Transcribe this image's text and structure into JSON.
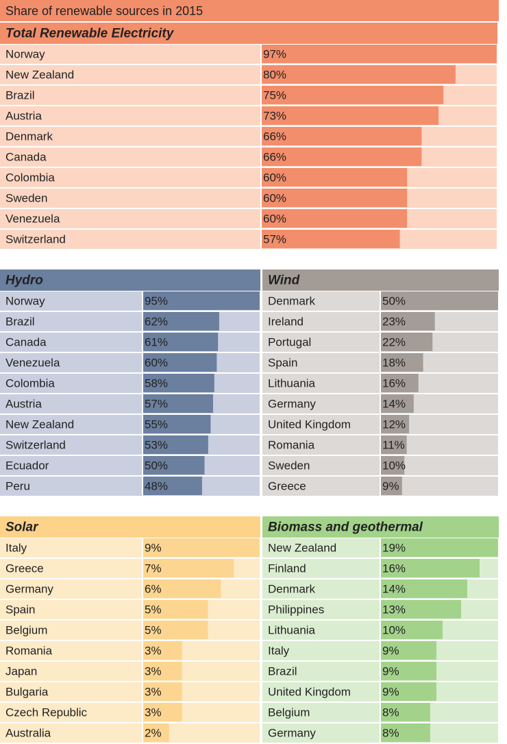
{
  "title": "Share of renewable sources in 2015",
  "chart_data": [
    {
      "type": "bar",
      "title": "Total Renewable Electricity",
      "color": "#f28e6c",
      "categories": [
        "Norway",
        "New Zealand",
        "Brazil",
        "Austria",
        "Denmark",
        "Canada",
        "Colombia",
        "Sweden",
        "Venezuela",
        "Switzerland"
      ],
      "values": [
        97,
        80,
        75,
        73,
        66,
        66,
        60,
        60,
        60,
        57
      ],
      "value_labels": [
        "97%",
        "80%",
        "75%",
        "73%",
        "66%",
        "66%",
        "60%",
        "60%",
        "60%",
        "57%"
      ]
    },
    {
      "type": "bar",
      "title": "Hydro",
      "color": "#6b7f9f",
      "categories": [
        "Norway",
        "Brazil",
        "Canada",
        "Venezuela",
        "Colombia",
        "Austria",
        "New Zealand",
        "Switzerland",
        "Ecuador",
        "Peru"
      ],
      "values": [
        95,
        62,
        61,
        60,
        58,
        57,
        55,
        53,
        50,
        48
      ],
      "value_labels": [
        "95%",
        "62%",
        "61%",
        "60%",
        "58%",
        "57%",
        "55%",
        "53%",
        "50%",
        "48%"
      ]
    },
    {
      "type": "bar",
      "title": "Wind",
      "color": "#a49d97",
      "categories": [
        "Denmark",
        "Ireland",
        "Portugal",
        "Spain",
        "Lithuania",
        "Germany",
        "United Kingdom",
        "Romania",
        "Sweden",
        "Greece"
      ],
      "values": [
        50,
        23,
        22,
        18,
        16,
        14,
        12,
        11,
        10,
        9
      ],
      "value_labels": [
        "50%",
        "23%",
        "22%",
        "18%",
        "16%",
        "14%",
        "12%",
        "11%",
        "10%",
        "9%"
      ]
    },
    {
      "type": "bar",
      "title": "Solar",
      "color": "#fcd590",
      "categories": [
        "Italy",
        "Greece",
        "Germany",
        "Spain",
        "Belgium",
        "Romania",
        "Japan",
        "Bulgaria",
        "Czech Republic",
        "Australia"
      ],
      "values": [
        9,
        7,
        6,
        5,
        5,
        3,
        3,
        3,
        3,
        2
      ],
      "value_labels": [
        "9%",
        "7%",
        "6%",
        "5%",
        "5%",
        "3%",
        "3%",
        "3%",
        "3%",
        "2%"
      ]
    },
    {
      "type": "bar",
      "title": "Biomass and geothermal",
      "color": "#a3d38b",
      "categories": [
        "New Zealand",
        "Finland",
        "Denmark",
        "Philippines",
        "Lithuania",
        "Italy",
        "Brazil",
        "United Kingdom",
        "Belgium",
        "Germany"
      ],
      "values": [
        19,
        16,
        14,
        13,
        10,
        9,
        9,
        9,
        8,
        8
      ],
      "value_labels": [
        "19%",
        "16%",
        "14%",
        "13%",
        "10%",
        "9%",
        "9%",
        "9%",
        "8%",
        "8%"
      ]
    }
  ]
}
